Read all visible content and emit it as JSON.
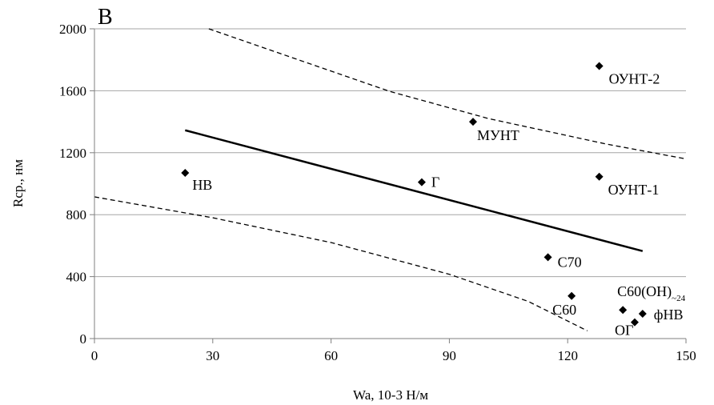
{
  "chart_data": {
    "type": "scatter",
    "panel_label": "В",
    "xlabel": "Wa, 10-3  Н/м",
    "ylabel": "Rср., нм",
    "xlim": [
      0,
      150
    ],
    "ylim": [
      0,
      2000
    ],
    "xticks": [
      0,
      30,
      60,
      90,
      120,
      150
    ],
    "yticks": [
      0,
      400,
      800,
      1200,
      1600,
      2000
    ],
    "grid": "horizontal",
    "points": [
      {
        "label": "НВ",
        "x": 23,
        "y": 1070
      },
      {
        "label": "Г",
        "x": 83,
        "y": 1010
      },
      {
        "label": "МУНТ",
        "x": 96,
        "y": 1400
      },
      {
        "label": "ОУНТ-2",
        "x": 128,
        "y": 1760
      },
      {
        "label": "ОУНТ-1",
        "x": 128,
        "y": 1045
      },
      {
        "label": "С70",
        "x": 115,
        "y": 525
      },
      {
        "label": "С60",
        "x": 121,
        "y": 275
      },
      {
        "label": "С60(ОН)",
        "label_sub": "~24",
        "x": 134,
        "y": 185
      },
      {
        "label": "ОГ",
        "x": 137,
        "y": 105
      },
      {
        "label": "фНВ",
        "x": 139,
        "y": 160
      }
    ],
    "trend_line": {
      "x": [
        23,
        139
      ],
      "y": [
        1345,
        565
      ]
    },
    "confidence_bounds": [
      {
        "x": [
          29,
          75,
          100,
          130,
          150
        ],
        "y": [
          2000,
          1595,
          1420,
          1255,
          1160
        ]
      },
      {
        "x": [
          0,
          30,
          60,
          90,
          110,
          125
        ],
        "y": [
          915,
          780,
          620,
          415,
          240,
          50
        ]
      }
    ]
  }
}
